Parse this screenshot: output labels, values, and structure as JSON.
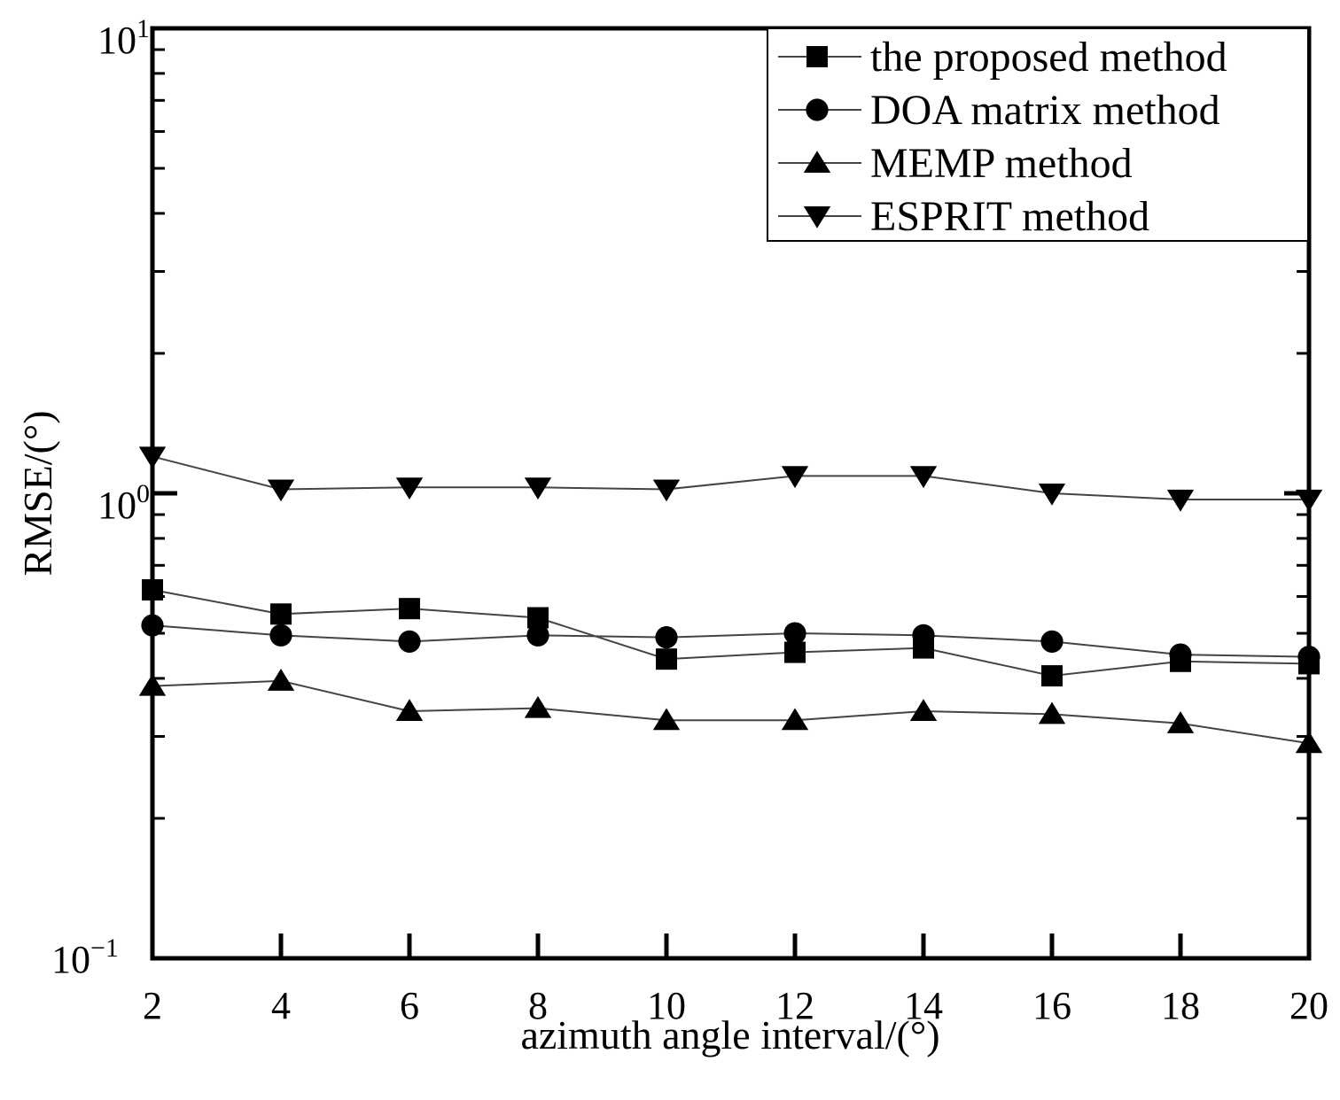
{
  "chart_data": {
    "type": "line",
    "title": "",
    "xlabel": "azimuth angle interval/(°)",
    "ylabel": "RMSE/(°)",
    "x": [
      2,
      4,
      6,
      8,
      10,
      12,
      14,
      16,
      18,
      20
    ],
    "xlim": [
      2,
      20
    ],
    "ylim": [
      0.1,
      10
    ],
    "yscale": "log",
    "x_tick_labels": [
      "2",
      "4",
      "6",
      "8",
      "10",
      "12",
      "14",
      "16",
      "18",
      "20"
    ],
    "y_tick_labels": [
      {
        "base": "10",
        "exp": "1"
      },
      {
        "base": "10",
        "exp": "0"
      },
      {
        "base": "10",
        "exp": "−1"
      }
    ],
    "grid": false,
    "legend_position": "top-right",
    "series": [
      {
        "name": "the proposed method",
        "marker": "square",
        "values": [
          0.62,
          0.55,
          0.565,
          0.54,
          0.44,
          0.455,
          0.465,
          0.405,
          0.435,
          0.43
        ]
      },
      {
        "name": "DOA matrix method",
        "marker": "circle",
        "values": [
          0.52,
          0.495,
          0.48,
          0.495,
          0.49,
          0.5,
          0.495,
          0.48,
          0.45,
          0.445
        ]
      },
      {
        "name": "MEMP method",
        "marker": "triangle-up",
        "values": [
          0.385,
          0.395,
          0.34,
          0.345,
          0.325,
          0.325,
          0.34,
          0.335,
          0.32,
          0.29
        ]
      },
      {
        "name": "ESPRIT method",
        "marker": "triangle-down",
        "values": [
          1.2,
          1.02,
          1.03,
          1.03,
          1.02,
          1.09,
          1.09,
          1.0,
          0.97,
          0.97
        ]
      }
    ]
  }
}
